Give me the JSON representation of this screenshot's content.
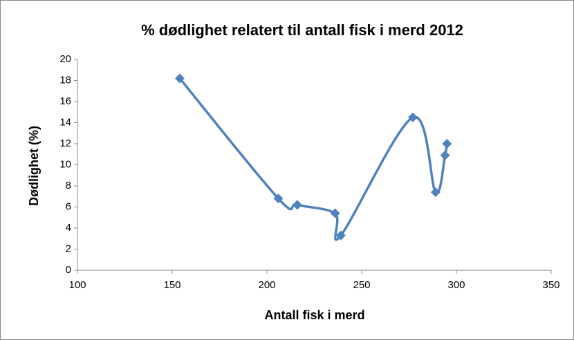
{
  "chart_data": {
    "type": "scatter",
    "title": "% dødlighet relatert til antall fisk i merd 2012",
    "xlabel": "Antall fisk i merd",
    "ylabel": "Dødlighet (%)",
    "series": [
      {
        "color": "#4f81bd",
        "x": [
          154,
          206,
          216,
          236,
          239,
          277,
          289,
          294,
          295
        ],
        "values": [
          18.2,
          6.8,
          6.2,
          5.4,
          3.3,
          14.5,
          7.4,
          10.9,
          12.0
        ]
      }
    ],
    "xlim": [
      100,
      350
    ],
    "xticks": [
      100,
      150,
      200,
      250,
      300,
      350
    ],
    "ylim": [
      0,
      20
    ],
    "yticks": [
      0,
      2,
      4,
      6,
      8,
      10,
      12,
      14,
      16,
      18,
      20
    ],
    "smooth": true
  }
}
